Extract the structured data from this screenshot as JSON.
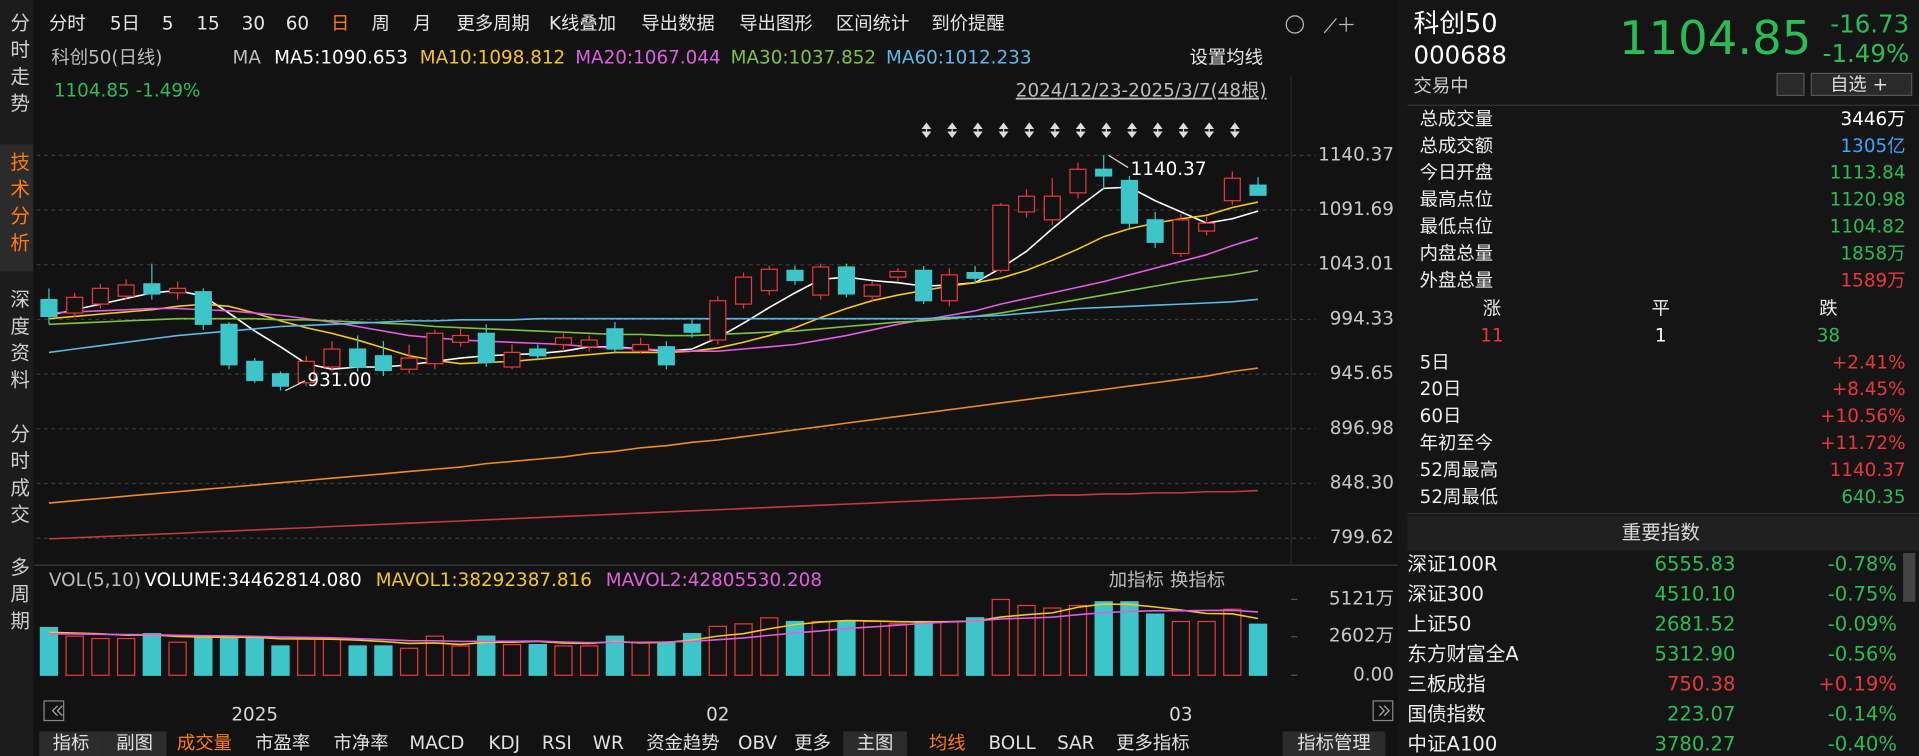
{
  "sidebar": [
    "分时走势",
    "技术分析",
    "深度资料",
    "分时成交",
    "多周期"
  ],
  "toolbar": [
    {
      "label": "分时"
    },
    {
      "label": "5日"
    },
    {
      "label": "5"
    },
    {
      "label": "15"
    },
    {
      "label": "30"
    },
    {
      "label": "60"
    },
    {
      "label": "日",
      "active": true
    },
    {
      "label": "周"
    },
    {
      "label": "月"
    },
    {
      "label": "更多周期"
    },
    {
      "label": "K线叠加"
    },
    {
      "label": "导出数据"
    },
    {
      "label": "导出图形"
    },
    {
      "label": "区间统计"
    },
    {
      "label": "到价提醒"
    }
  ],
  "legend": {
    "title": "科创50(日线)",
    "ma": "MA",
    "setting": "设置均线",
    "current": "1104.85 -1.49%",
    "range": "2024/12/23-2025/3/7(48根)"
  },
  "annotations": [
    {
      "label": "1140.37",
      "value": 1140.37,
      "index": 41
    },
    {
      "label": "931.00",
      "value": 931,
      "index": 9
    }
  ],
  "chart_data": [
    {
      "type": "candlestick",
      "up_color": "#e8383d",
      "down_color": "#3ec5c9",
      "grid": true,
      "categories": [
        null,
        null,
        null,
        null,
        null,
        null,
        null,
        "2025",
        null,
        null,
        null,
        null,
        null,
        null,
        null,
        null,
        null,
        null,
        null,
        null,
        null,
        null,
        null,
        null,
        null,
        "02",
        null,
        null,
        null,
        null,
        null,
        null,
        null,
        null,
        null,
        null,
        null,
        null,
        null,
        null,
        null,
        null,
        null,
        "03",
        null,
        null,
        null,
        null
      ],
      "open": [
        1012,
        1000,
        1008,
        1015,
        1026,
        1018,
        1019,
        990,
        957,
        946,
        938,
        952,
        968,
        962,
        950,
        955,
        974,
        982,
        952,
        968,
        972,
        970,
        986,
        966,
        970,
        990,
        976,
        1008,
        1020,
        1038,
        1016,
        1041,
        1015,
        1032,
        1038,
        1011,
        1036,
        1038,
        1090,
        1083,
        1107,
        1128,
        1118,
        1083,
        1053,
        1073,
        1100,
        1113.84
      ],
      "close": [
        997,
        1014,
        1022,
        1025,
        1017,
        1022,
        990,
        954,
        940,
        935,
        957,
        968,
        952,
        949,
        960,
        982,
        980,
        956,
        965,
        962,
        978,
        976,
        968,
        972,
        954,
        983,
        1011,
        1032,
        1039,
        1029,
        1041,
        1017,
        1025,
        1037,
        1011,
        1034,
        1031,
        1096,
        1104,
        1104,
        1128,
        1122,
        1080,
        1063,
        1083,
        1080,
        1120,
        1104.85
      ],
      "high": [
        1022,
        1018,
        1026,
        1030,
        1044,
        1028,
        1022,
        992,
        960,
        948,
        962,
        975,
        980,
        975,
        972,
        985,
        986,
        990,
        972,
        972,
        982,
        980,
        992,
        978,
        975,
        994,
        1015,
        1036,
        1042,
        1042,
        1044,
        1044,
        1028,
        1040,
        1042,
        1040,
        1042,
        1098,
        1110,
        1120,
        1134,
        1140.37,
        1122,
        1090,
        1088,
        1086,
        1126,
        1120.98
      ],
      "low": [
        990,
        996,
        1004,
        1012,
        1012,
        1012,
        985,
        950,
        938,
        931,
        935,
        948,
        948,
        944,
        946,
        950,
        970,
        952,
        950,
        958,
        966,
        966,
        964,
        964,
        950,
        978,
        972,
        1004,
        1016,
        1025,
        1012,
        1014,
        1010,
        1028,
        1008,
        1006,
        1026,
        1036,
        1085,
        1078,
        1102,
        1110,
        1074,
        1058,
        1050,
        1069,
        1096,
        1104.82
      ],
      "series": [
        {
          "name": "MA5:1090.653",
          "color": "#ffffff",
          "values": [
            998,
            1003,
            1008,
            1013,
            1018,
            1020,
            1015,
            1000,
            984,
            970,
            955,
            950,
            952,
            952,
            954,
            957,
            960,
            962,
            963,
            964,
            966,
            970,
            970,
            968,
            966,
            968,
            978,
            991,
            1005,
            1018,
            1030,
            1032,
            1029,
            1027,
            1024,
            1025,
            1027,
            1040,
            1055,
            1075,
            1094,
            1111,
            1112,
            1100,
            1090,
            1080,
            1084,
            1090.653
          ]
        },
        {
          "name": "MA10:1098.812",
          "color": "#f3c623",
          "values": [
            995,
            997,
            999,
            1001,
            1003,
            1006,
            1008,
            1006,
            1000,
            993,
            987,
            982,
            976,
            969,
            962,
            958,
            955,
            956,
            957,
            959,
            961,
            963,
            965,
            965,
            965,
            966,
            969,
            974,
            980,
            987,
            996,
            1004,
            1011,
            1016,
            1020,
            1024,
            1027,
            1031,
            1038,
            1047,
            1057,
            1068,
            1075,
            1080,
            1084,
            1087,
            1094,
            1098.812
          ]
        },
        {
          "name": "MA20:1067.044",
          "color": "#e05ee0",
          "values": [
            1000,
            1001,
            1002,
            1003,
            1004,
            1004,
            1003,
            1002,
            1000,
            998,
            995,
            992,
            988,
            984,
            980,
            978,
            976,
            975,
            974,
            973,
            972,
            970,
            969,
            968,
            967,
            966,
            966,
            968,
            970,
            972,
            976,
            980,
            985,
            990,
            994,
            998,
            1002,
            1008,
            1013,
            1018,
            1023,
            1028,
            1034,
            1040,
            1046,
            1052,
            1060,
            1067.044
          ]
        },
        {
          "name": "MA30:1037.852",
          "color": "#7dc241",
          "values": [
            990,
            991,
            992,
            993,
            994,
            995,
            995,
            995,
            995,
            994,
            994,
            993,
            992,
            991,
            990,
            988,
            987,
            986,
            985,
            984,
            983,
            982,
            981,
            981,
            980,
            980,
            981,
            982,
            983,
            984,
            986,
            988,
            990,
            992,
            993,
            995,
            997,
            1000,
            1004,
            1008,
            1012,
            1016,
            1020,
            1024,
            1028,
            1031,
            1034,
            1037.852
          ]
        },
        {
          "name": "MA60:1012.233",
          "color": "#5fb8e6",
          "values": [
            965,
            968,
            971,
            974,
            977,
            980,
            982,
            984,
            986,
            988,
            989,
            990,
            991,
            992,
            993,
            993,
            994,
            994,
            994,
            995,
            995,
            995,
            995,
            995,
            995,
            995,
            995,
            995,
            995,
            995,
            995,
            995,
            995,
            995,
            995,
            996,
            997,
            998,
            1000,
            1002,
            1004,
            1005,
            1006,
            1007,
            1008,
            1009,
            1010,
            1012.233
          ]
        },
        {
          "color": "#f08a24",
          "values": [
            831,
            833,
            835,
            837,
            839,
            841,
            843,
            845,
            847,
            849,
            851,
            853,
            855,
            857,
            859,
            861,
            863,
            866,
            868,
            870,
            872,
            875,
            877,
            880,
            882,
            885,
            887,
            890,
            893,
            896,
            899,
            902,
            905,
            908,
            911,
            914,
            917,
            920,
            923,
            926,
            929,
            932,
            935,
            938,
            941,
            944,
            948,
            951
          ]
        },
        {
          "color": "#c63a3c",
          "values": [
            799,
            800,
            801,
            802,
            803,
            804,
            805,
            806,
            807,
            808,
            809,
            810,
            811,
            812,
            813,
            814,
            815,
            816,
            817,
            818,
            819,
            820,
            821,
            822,
            823,
            824,
            825,
            826,
            827,
            828,
            829,
            830,
            831,
            832,
            833,
            834,
            835,
            836,
            837,
            838,
            838,
            839,
            839,
            840,
            840,
            841,
            841,
            842
          ]
        }
      ],
      "ylim": [
        780,
        1195
      ],
      "yticks": [
        1140.37,
        1091.69,
        1043.01,
        994.33,
        945.65,
        896.98,
        {
          "value": 848.3,
          "label": "848.30"
        },
        799.62
      ]
    },
    {
      "type": "bar",
      "title": "VOL(5,10)",
      "series": [
        {
          "name": "VOLUME:34462814.080",
          "color": "#ffffff",
          "values": [
            3220,
            2640,
            2480,
            2480,
            2810,
            2230,
            2640,
            2640,
            2480,
            1980,
            2480,
            2480,
            1980,
            1980,
            1820,
            2640,
            1980,
            2640,
            2070,
            2070,
            1980,
            1980,
            2640,
            2230,
            2230,
            2810,
            3300,
            3470,
            3880,
            3630,
            3630,
            3630,
            3630,
            3470,
            3630,
            3630,
            3880,
            5120,
            4710,
            4540,
            4710,
            4960,
            4960,
            4130,
            3630,
            3630,
            4460,
            3446.28
          ]
        },
        {
          "name": "MAVOL1:38292387.816",
          "color": "#f3c623",
          "values": [
            2900,
            2850,
            2800,
            2700,
            2730,
            2620,
            2580,
            2560,
            2570,
            2460,
            2450,
            2440,
            2380,
            2280,
            2150,
            2180,
            2080,
            2220,
            2230,
            2290,
            2170,
            2150,
            2280,
            2190,
            2220,
            2380,
            2640,
            2810,
            3140,
            3420,
            3590,
            3690,
            3670,
            3620,
            3600,
            3620,
            3650,
            3930,
            4090,
            4210,
            4590,
            4810,
            4780,
            4610,
            4400,
            4170,
            4150,
            3829.24
          ]
        },
        {
          "name": "MAVOL2:42805530.208",
          "color": "#e05ee0",
          "values": [
            2800,
            2790,
            2770,
            2750,
            2740,
            2700,
            2680,
            2660,
            2630,
            2580,
            2550,
            2530,
            2470,
            2410,
            2340,
            2330,
            2290,
            2300,
            2300,
            2310,
            2250,
            2200,
            2220,
            2230,
            2250,
            2290,
            2400,
            2520,
            2690,
            2860,
            2990,
            3160,
            3260,
            3380,
            3510,
            3600,
            3670,
            3800,
            3860,
            3920,
            4090,
            4230,
            4310,
            4350,
            4350,
            4380,
            4390,
            4280.55
          ]
        }
      ],
      "ylim": [
        0,
        5700
      ],
      "yticks": [
        {
          "value": 5121,
          "label": "5121万"
        },
        {
          "value": 2602,
          "label": "2602万"
        },
        {
          "value": 0,
          "label": "0.00"
        }
      ],
      "tools": [
        "加指标",
        "换指标"
      ]
    }
  ],
  "tabs": [
    {
      "label": "指标",
      "boxed": true
    },
    {
      "label": "副图",
      "boxed": true
    },
    {
      "label": "成交量",
      "active": true
    },
    {
      "label": "市盈率"
    },
    {
      "label": "市净率"
    },
    {
      "label": "MACD"
    },
    {
      "label": "KDJ"
    },
    {
      "label": "RSI"
    },
    {
      "label": "WR"
    },
    {
      "label": "资金趋势"
    },
    {
      "label": "OBV"
    },
    {
      "label": "更多"
    },
    {
      "label": "主图",
      "boxed": true
    },
    {
      "label": "均线",
      "active": true
    },
    {
      "label": "BOLL"
    },
    {
      "label": "SAR"
    },
    {
      "label": "更多指标"
    },
    {
      "label": "指标管理",
      "boxed": true
    }
  ],
  "quote": {
    "name": "科创50",
    "code": "000688",
    "price": "1104.85",
    "change": "-16.73",
    "pct": "-1.49%",
    "status": "交易中",
    "watch": "自选 +"
  },
  "stats": [
    {
      "label": "总成交量",
      "value": "3446万",
      "color": "#ffffff"
    },
    {
      "label": "总成交额",
      "value": "1305亿",
      "color": "#3ea6ff"
    },
    {
      "label": "今日开盘",
      "value": "1113.84",
      "color": "#2bbd55"
    },
    {
      "label": "最高点位",
      "value": "1120.98",
      "color": "#2bbd55"
    },
    {
      "label": "最低点位",
      "value": "1104.82",
      "color": "#2bbd55"
    },
    {
      "label": "内盘总量",
      "value": "1858万",
      "color": "#2bbd55"
    },
    {
      "label": "外盘总量",
      "value": "1589万",
      "color": "#e8383d"
    }
  ],
  "breadth": {
    "labels": [
      "涨",
      "平",
      "跌"
    ],
    "values": [
      11,
      1,
      38
    ],
    "colors": [
      "#e8383d",
      "#ffffff",
      "#2bbd55"
    ]
  },
  "returns": [
    {
      "label": "5日",
      "value": "+2.41%",
      "color": "#e8383d"
    },
    {
      "label": "20日",
      "value": "+8.45%",
      "color": "#e8383d"
    },
    {
      "label": "60日",
      "value": "+10.56%",
      "color": "#e8383d"
    },
    {
      "label": "年初至今",
      "value": "+11.72%",
      "color": "#e8383d"
    },
    {
      "label": "52周最高",
      "value": "1140.37",
      "color": "#e8383d"
    },
    {
      "label": "52周最低",
      "value": "640.35",
      "color": "#2bbd55"
    }
  ],
  "indices": {
    "title": "重要指数",
    "rows": [
      {
        "name": "深证100R",
        "value": "6555.83",
        "change": "-0.78%",
        "color": "#2bbd55"
      },
      {
        "name": "深证300",
        "value": "4510.10",
        "change": "-0.75%",
        "color": "#2bbd55"
      },
      {
        "name": "上证50",
        "value": "2681.52",
        "change": "-0.09%",
        "color": "#2bbd55"
      },
      {
        "name": "东方财富全A",
        "value": "5312.90",
        "change": "-0.56%",
        "color": "#2bbd55"
      },
      {
        "name": "三板成指",
        "value": "750.38",
        "change": "+0.19%",
        "color": "#e8383d"
      },
      {
        "name": "国债指数",
        "value": "223.07",
        "change": "-0.14%",
        "color": "#2bbd55"
      },
      {
        "name": "中证A100",
        "value": "3780.27",
        "change": "-0.40%",
        "color": "#2bbd55"
      }
    ]
  }
}
